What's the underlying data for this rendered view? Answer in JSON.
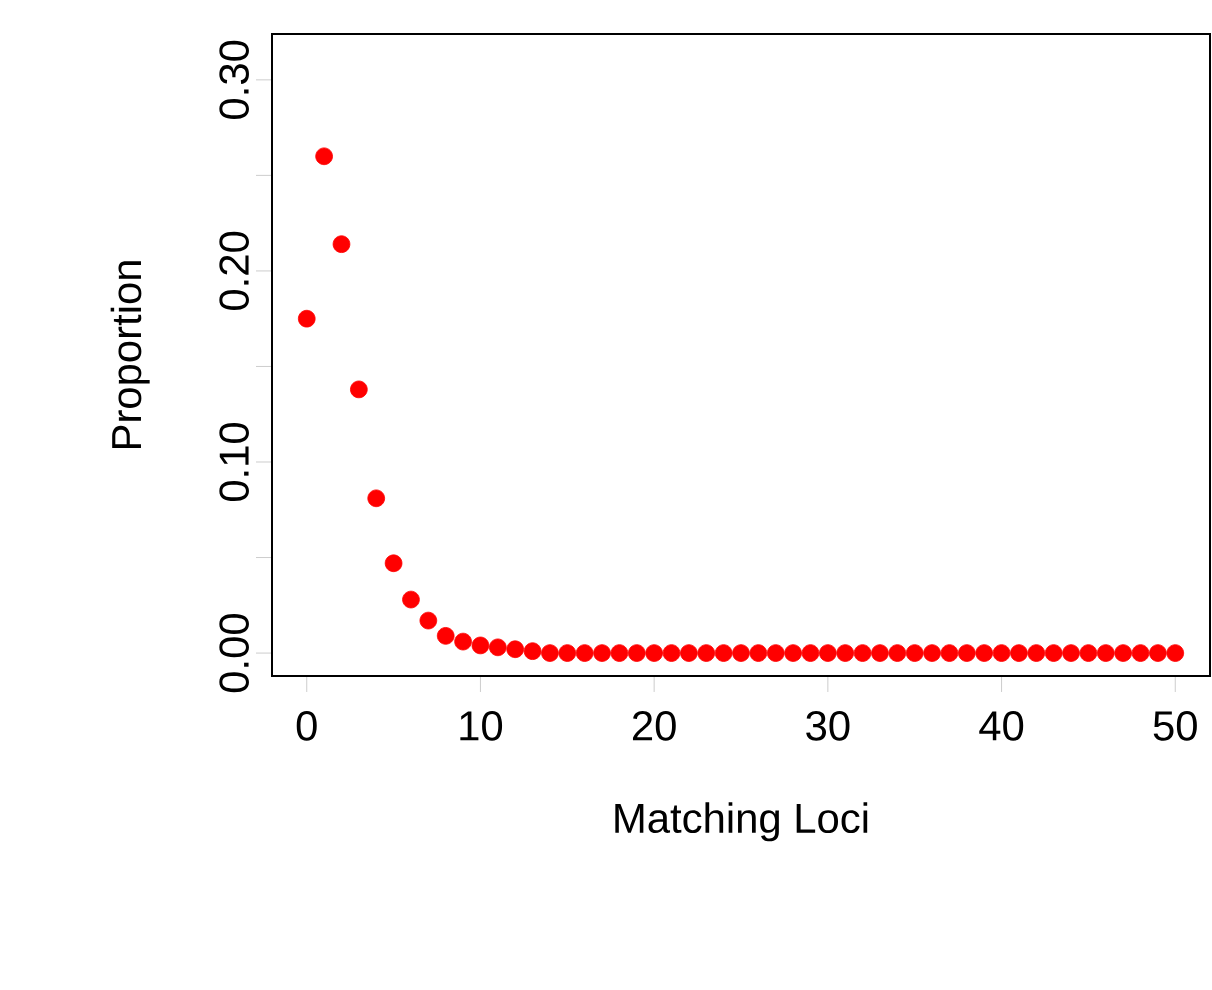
{
  "chart_data": {
    "type": "scatter",
    "xlabel": "Matching Loci",
    "ylabel": "Proportion",
    "x": [
      0,
      1,
      2,
      3,
      4,
      5,
      6,
      7,
      8,
      9,
      10,
      11,
      12,
      13,
      14,
      15,
      16,
      17,
      18,
      19,
      20,
      21,
      22,
      23,
      24,
      25,
      26,
      27,
      28,
      29,
      30,
      31,
      32,
      33,
      34,
      35,
      36,
      37,
      38,
      39,
      40,
      41,
      42,
      43,
      44,
      45,
      46,
      47,
      48,
      49,
      50
    ],
    "series": [
      {
        "color": "#ff0000",
        "values": [
          0.175,
          0.26,
          0.214,
          0.138,
          0.081,
          0.047,
          0.028,
          0.017,
          0.009,
          0.006,
          0.004,
          0.003,
          0.002,
          0.001,
          0,
          0,
          0,
          0,
          0,
          0,
          0,
          0,
          0,
          0,
          0,
          0,
          0,
          0,
          0,
          0,
          0,
          0,
          0,
          0,
          0,
          0,
          0,
          0,
          0,
          0,
          0,
          0,
          0,
          0,
          0,
          0,
          0,
          0,
          0,
          0,
          0
        ]
      }
    ],
    "xlim": [
      -2,
      52
    ],
    "ylim": [
      -0.012,
      0.324
    ],
    "xticks": [
      0,
      10,
      20,
      30,
      40,
      50
    ],
    "yticks": [
      {
        "value": 0,
        "label": "0.00"
      },
      {
        "value": 0.05,
        "label": null
      },
      {
        "value": 0.1,
        "label": "0.10"
      },
      {
        "value": 0.15,
        "label": null
      },
      {
        "value": 0.2,
        "label": "0.20"
      },
      {
        "value": 0.25,
        "label": null
      },
      {
        "value": 0.3,
        "label": "0.30"
      }
    ],
    "marker": "circle",
    "grid": false
  }
}
